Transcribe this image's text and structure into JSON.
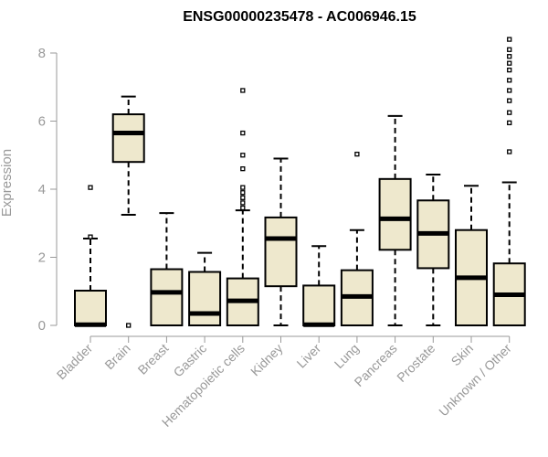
{
  "chart_data": {
    "type": "boxplot",
    "title": "ENSG00000235478 - AC006946.15",
    "xlabel": "",
    "ylabel": "Expression",
    "ylim": [
      0,
      8.4
    ],
    "yticks": [
      0,
      2,
      4,
      6,
      8
    ],
    "ytick_labels": [
      "0",
      "2",
      "4",
      "6",
      "8"
    ],
    "grid": false,
    "box_color": "#EEE8CD",
    "categories": [
      "Bladder",
      "Brain",
      "Breast",
      "Gastric",
      "Hematopoietic cells",
      "Kidney",
      "Liver",
      "Lung",
      "Pancreas",
      "Prostate",
      "Skin",
      "Unknown / Other"
    ],
    "boxes": [
      {
        "min": 0,
        "q1": 0,
        "median": 0.02,
        "q3": 1.02,
        "max": 2.55,
        "outliers": [
          2.6,
          4.05
        ]
      },
      {
        "min": 3.25,
        "q1": 4.8,
        "median": 5.65,
        "q3": 6.2,
        "max": 6.72,
        "outliers": [
          0
        ]
      },
      {
        "min": 0,
        "q1": 0,
        "median": 0.97,
        "q3": 1.65,
        "max": 3.3,
        "outliers": []
      },
      {
        "min": 0,
        "q1": 0,
        "median": 0.35,
        "q3": 1.57,
        "max": 2.13,
        "outliers": []
      },
      {
        "min": 0,
        "q1": 0,
        "median": 0.72,
        "q3": 1.38,
        "max": 3.38,
        "outliers": [
          3.45,
          3.6,
          3.75,
          3.9,
          4.05,
          4.6,
          5.0,
          5.65,
          6.9
        ]
      },
      {
        "min": 0,
        "q1": 1.15,
        "median": 2.55,
        "q3": 3.17,
        "max": 4.9,
        "outliers": []
      },
      {
        "min": 0,
        "q1": 0,
        "median": 0.02,
        "q3": 1.17,
        "max": 2.33,
        "outliers": []
      },
      {
        "min": 0,
        "q1": 0,
        "median": 0.85,
        "q3": 1.62,
        "max": 2.8,
        "outliers": [
          5.03
        ]
      },
      {
        "min": 0,
        "q1": 2.22,
        "median": 3.13,
        "q3": 4.3,
        "max": 6.15,
        "outliers": []
      },
      {
        "min": 0,
        "q1": 1.68,
        "median": 2.7,
        "q3": 3.67,
        "max": 4.43,
        "outliers": []
      },
      {
        "min": 0,
        "q1": 0,
        "median": 1.4,
        "q3": 2.8,
        "max": 4.1,
        "outliers": []
      },
      {
        "min": 0,
        "q1": 0,
        "median": 0.9,
        "q3": 1.82,
        "max": 4.2,
        "outliers": [
          5.1,
          5.95,
          6.25,
          6.6,
          6.9,
          7.2,
          7.5,
          7.7,
          7.9,
          8.1,
          8.4
        ]
      }
    ]
  }
}
